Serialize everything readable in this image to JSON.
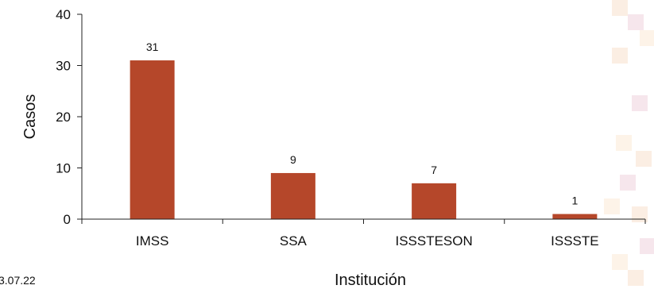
{
  "chart_data": {
    "type": "bar",
    "categories": [
      "IMSS",
      "SSA",
      "ISSSTESON",
      "ISSSTE"
    ],
    "values": [
      31,
      9,
      7,
      1
    ],
    "data_labels": [
      "31",
      "9",
      "7",
      "1"
    ],
    "title": "",
    "xlabel": "Institución",
    "ylabel": "Casos",
    "ylim": [
      0,
      40
    ],
    "yticks": [
      "0",
      "10",
      "20",
      "30",
      "40"
    ],
    "grid": false,
    "legend": "none",
    "bar_color": "#b5472a",
    "axis_color": "#222222"
  },
  "footnote": "3.07.22",
  "decoration": {
    "pattern_colors": [
      "#fbeee3",
      "#f6e6ec",
      "#fdf3e8"
    ]
  }
}
